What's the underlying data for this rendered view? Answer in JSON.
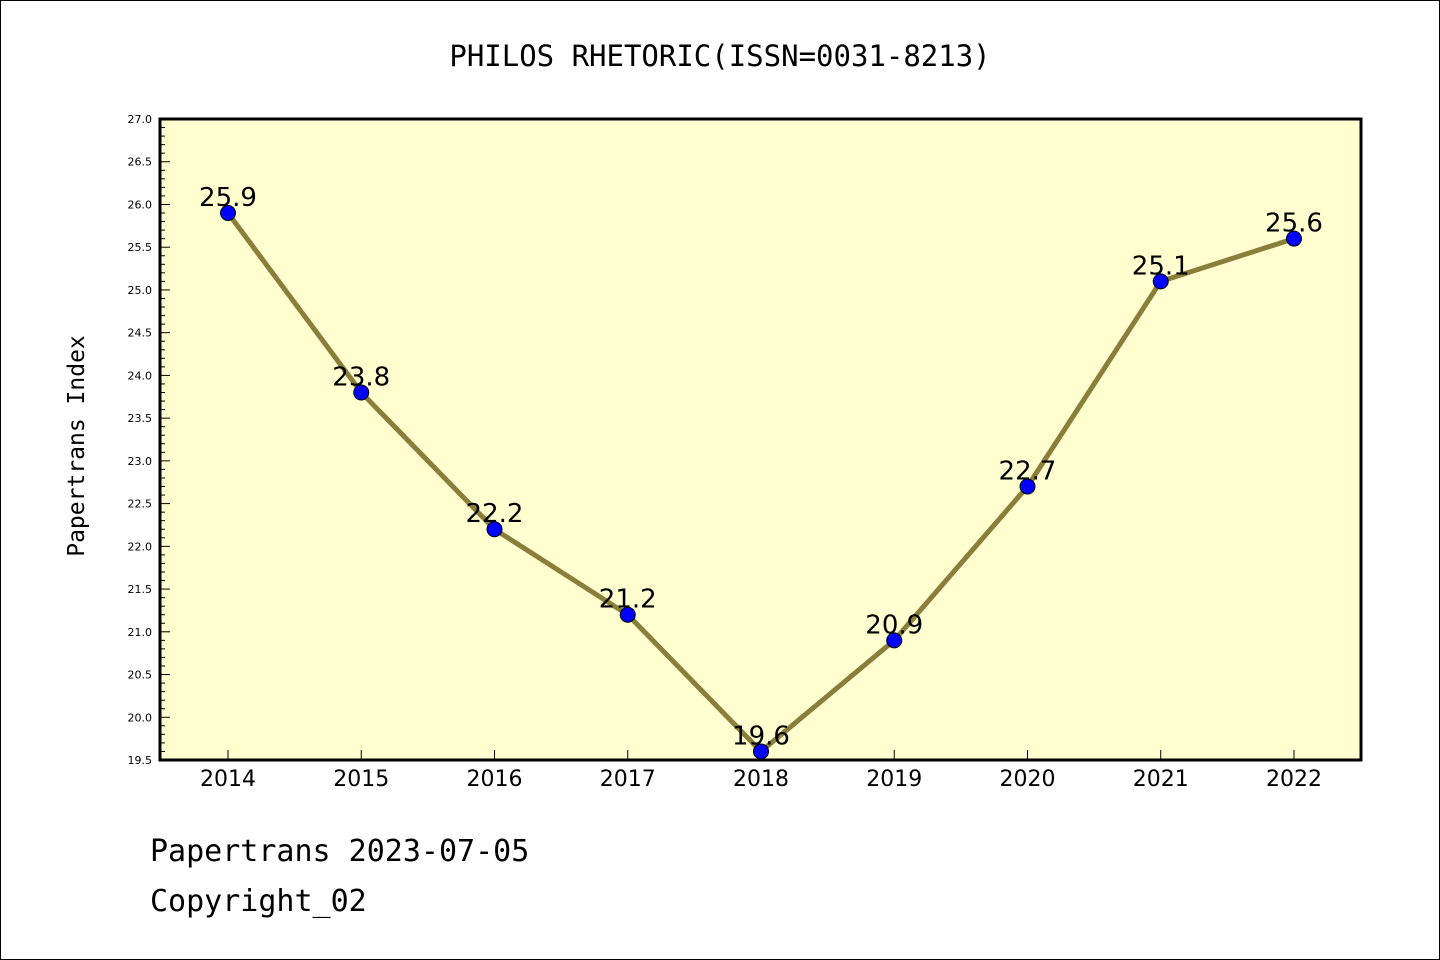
{
  "chart_data": {
    "type": "line",
    "title": "PHILOS RHETORIC(ISSN=0031-8213)",
    "ylabel": "Papertrans Index",
    "xlabel": "",
    "categories": [
      "2014",
      "2015",
      "2016",
      "2017",
      "2018",
      "2019",
      "2020",
      "2021",
      "2022"
    ],
    "series": [
      {
        "values": [
          25.9,
          23.8,
          22.2,
          21.2,
          19.6,
          20.9,
          22.7,
          25.1,
          25.6
        ],
        "labels": [
          "25.9",
          "23.8",
          "22.2",
          "21.2",
          "19.6",
          "20.9",
          "22.7",
          "25.1",
          "25.6"
        ]
      }
    ],
    "ylim": [
      19.5,
      27.0
    ],
    "yticks": [
      "19.5",
      "20.0",
      "20.5",
      "21.0",
      "21.5",
      "22.0",
      "22.5",
      "23.0",
      "23.5",
      "24.0",
      "24.5",
      "25.0",
      "25.5",
      "26.0",
      "26.5",
      "27.0"
    ],
    "grid": false,
    "legend": "none",
    "colors": {
      "plot_background": "#ffffd0",
      "line": "#8b7d3a",
      "marker": "#0000ff"
    }
  },
  "footer": {
    "date_text": "Papertrans 2023-07-05",
    "copyright_text": "Copyright_02"
  }
}
